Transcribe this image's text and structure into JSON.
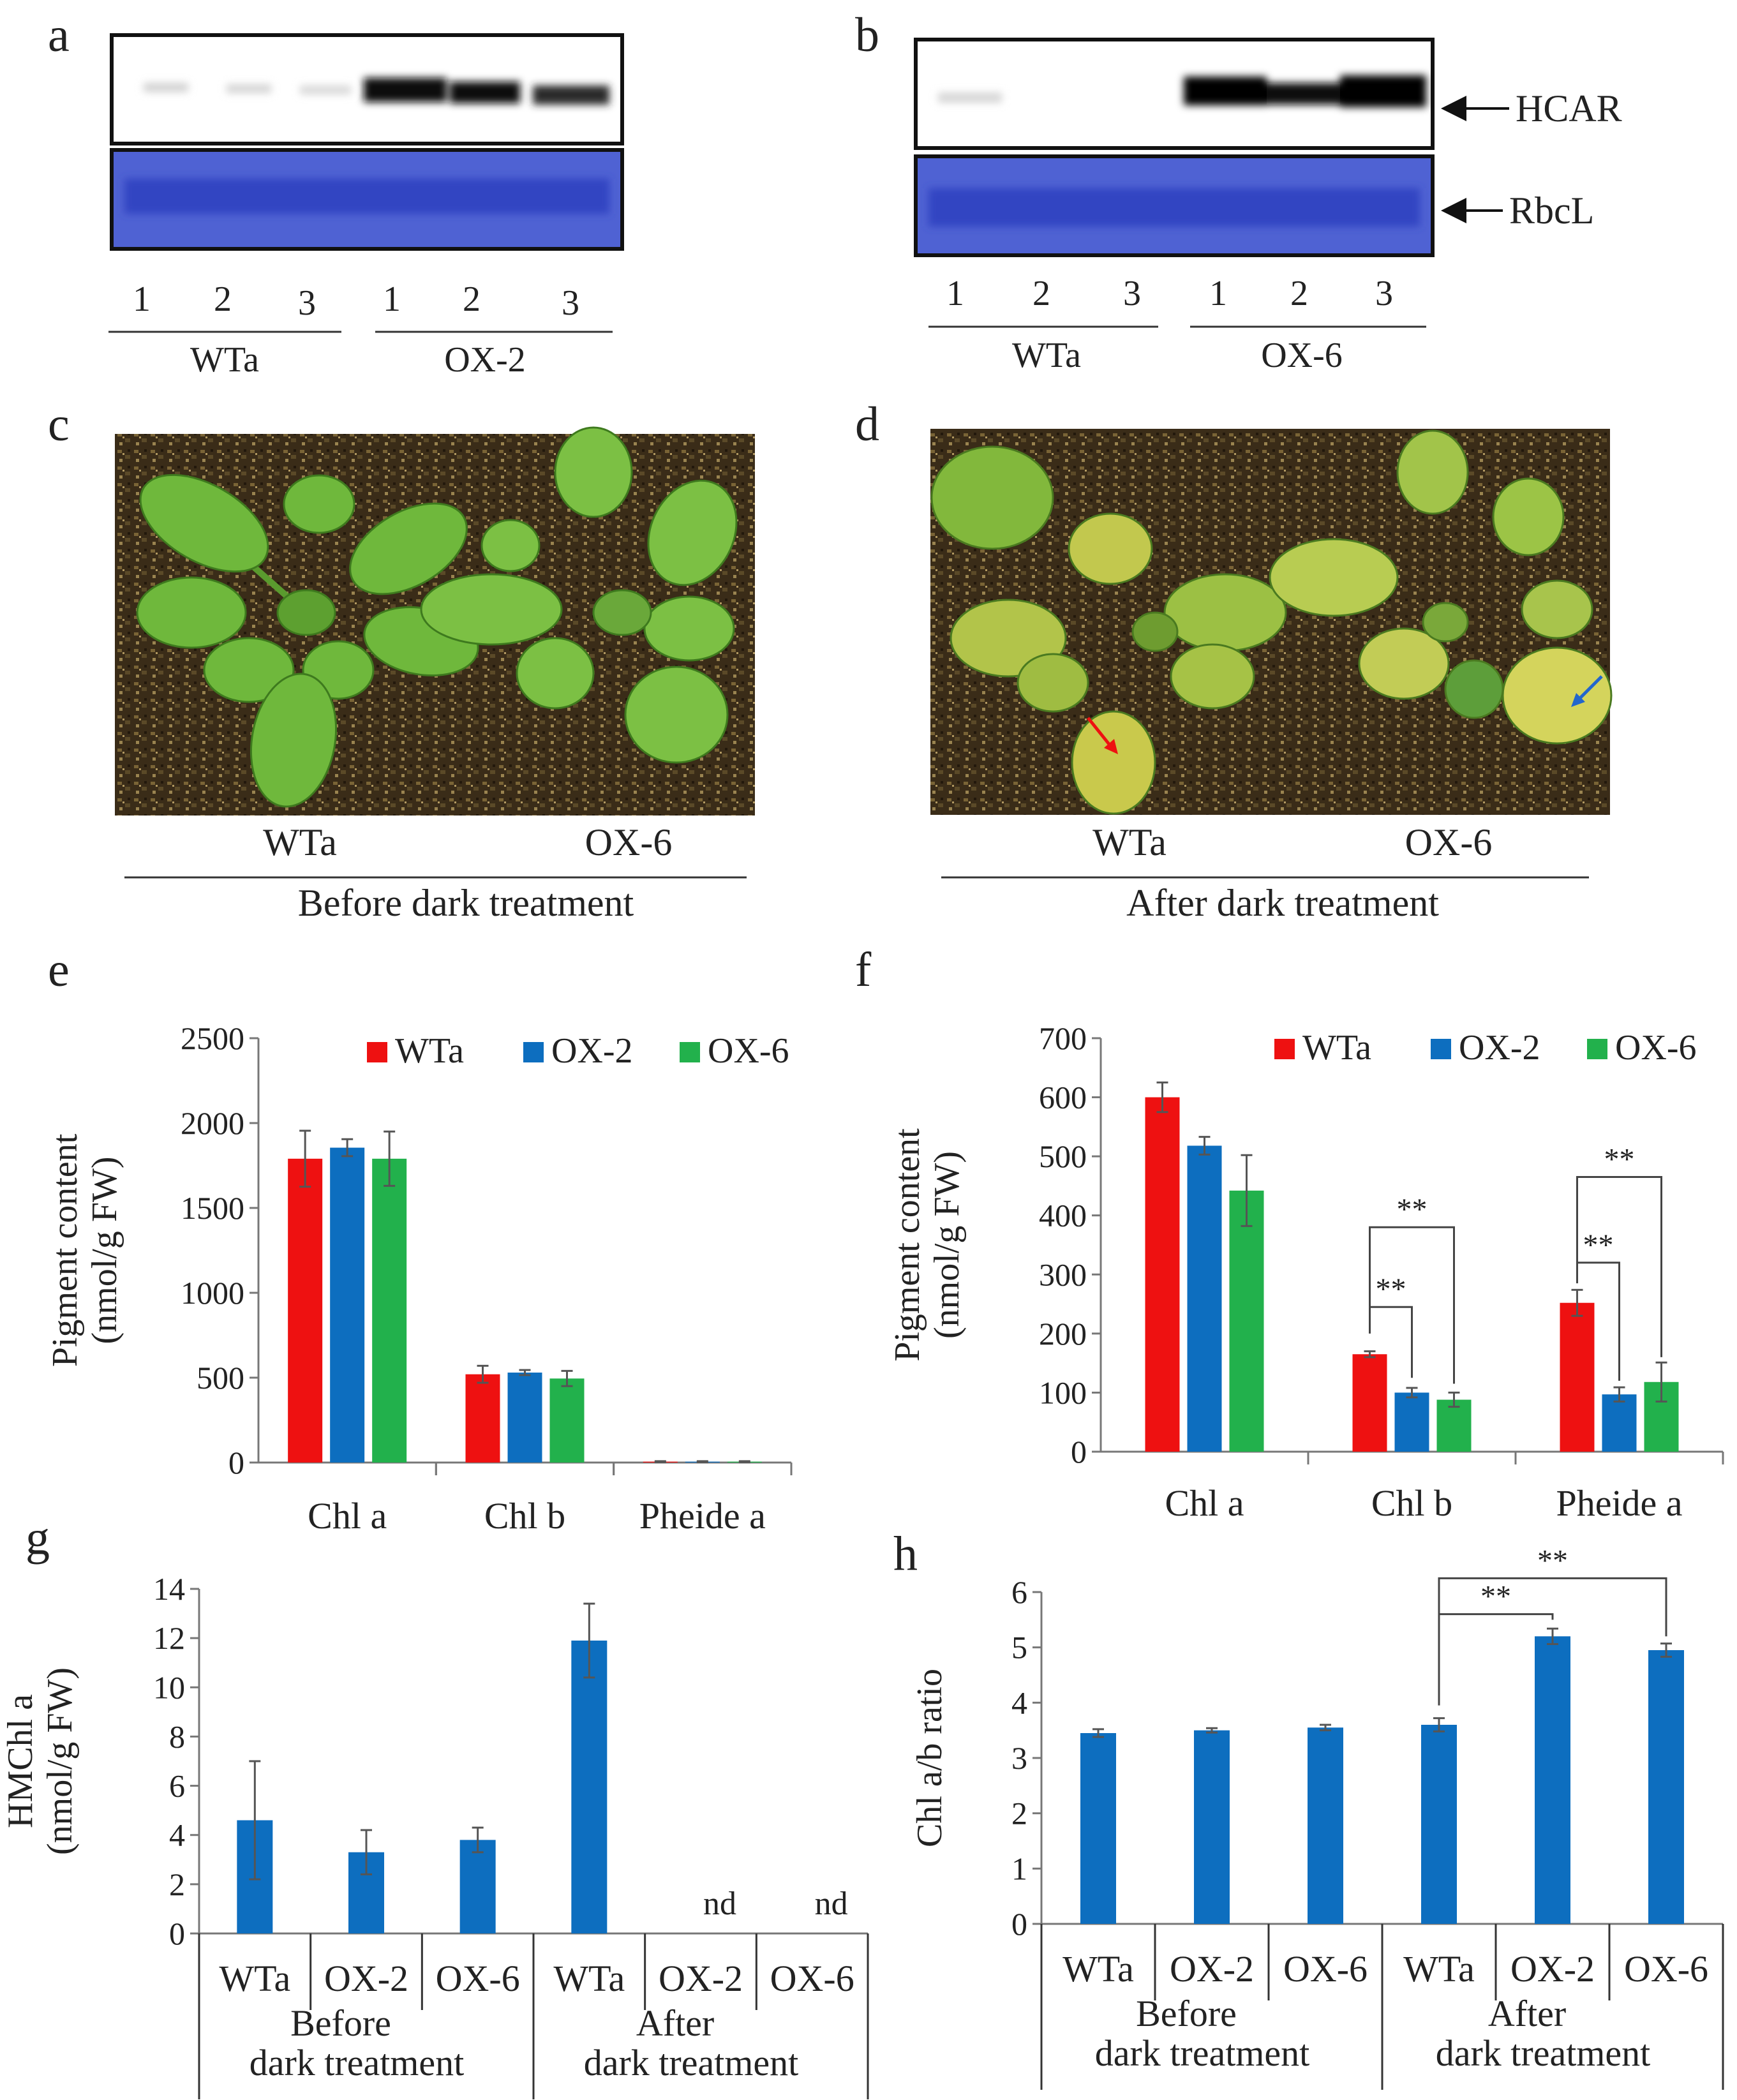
{
  "panels": {
    "a": {
      "letter": "a",
      "lanes": [
        "1",
        "2",
        "3",
        "1",
        "2",
        "3"
      ],
      "groups": [
        "WTa",
        "OX-2"
      ]
    },
    "b": {
      "letter": "b",
      "lanes": [
        "1",
        "2",
        "3",
        "1",
        "2",
        "3"
      ],
      "groups": [
        "WTa",
        "OX-6"
      ],
      "band_labels": [
        "HCAR",
        "RbcL"
      ]
    },
    "c": {
      "letter": "c",
      "plants": [
        "WTa",
        "OX-6"
      ],
      "caption": "Before dark treatment"
    },
    "d": {
      "letter": "d",
      "plants": [
        "WTa",
        "OX-6"
      ],
      "caption": "After dark treatment"
    },
    "e": {
      "letter": "e"
    },
    "f": {
      "letter": "f"
    },
    "g": {
      "letter": "g"
    },
    "h": {
      "letter": "h"
    }
  },
  "colors": {
    "WTa": "#ee1111",
    "OX-2": "#0d6ebf",
    "OX-6": "#22b14c",
    "single": "#0d6ebf",
    "coomassie": "#4d5fd0",
    "soil": "#3d2f1a",
    "leaf": "#6cb43a",
    "leaf_yellow": "#c8cc4a"
  },
  "chart_data": [
    {
      "panel": "e",
      "type": "bar",
      "categories": [
        "Chl a",
        "Chl b",
        "Pheide a"
      ],
      "series": [
        {
          "name": "WTa",
          "values": [
            1790,
            520,
            5
          ],
          "errors": [
            165,
            50,
            3
          ]
        },
        {
          "name": "OX-2",
          "values": [
            1855,
            530,
            5
          ],
          "errors": [
            50,
            15,
            3
          ]
        },
        {
          "name": "OX-6",
          "values": [
            1790,
            495,
            5
          ],
          "errors": [
            160,
            45,
            3
          ]
        }
      ],
      "ylabel": [
        "Pigment content",
        "(nmol/g FW)"
      ],
      "ylim": [
        0,
        2500
      ],
      "yticks": [
        "0",
        "500",
        "1000",
        "1500",
        "2000",
        "2500"
      ],
      "legend": [
        "WTa",
        "OX-2",
        "OX-6"
      ]
    },
    {
      "panel": "f",
      "type": "bar",
      "categories": [
        "Chl a",
        "Chl b",
        "Pheide a"
      ],
      "series": [
        {
          "name": "WTa",
          "values": [
            600,
            165,
            252
          ],
          "errors": [
            25,
            5,
            22
          ]
        },
        {
          "name": "OX-2",
          "values": [
            518,
            100,
            97
          ],
          "errors": [
            15,
            8,
            12
          ]
        },
        {
          "name": "OX-6",
          "values": [
            442,
            88,
            118
          ],
          "errors": [
            60,
            12,
            33
          ]
        }
      ],
      "ylabel": [
        "Pigment content",
        "(nmol/g FW)"
      ],
      "ylim": [
        0,
        700
      ],
      "yticks": [
        "0",
        "100",
        "200",
        "300",
        "400",
        "500",
        "600",
        "700"
      ],
      "legend": [
        "WTa",
        "OX-2",
        "OX-6"
      ],
      "significance": [
        {
          "category": "Chl b",
          "compare": "WTa vs OX-2",
          "label": "**"
        },
        {
          "category": "Chl b",
          "compare": "WTa vs OX-6",
          "label": "**"
        },
        {
          "category": "Pheide a",
          "compare": "WTa vs OX-2",
          "label": "**"
        },
        {
          "category": "Pheide a",
          "compare": "WTa vs OX-6",
          "label": "**"
        }
      ]
    },
    {
      "panel": "g",
      "type": "bar",
      "categories": [
        "WTa",
        "OX-2",
        "OX-6",
        "WTa",
        "OX-2",
        "OX-6"
      ],
      "groups": [
        [
          "Before",
          "dark treatment"
        ],
        [
          "After",
          "dark treatment"
        ]
      ],
      "values": [
        4.6,
        3.3,
        3.8,
        11.9,
        0,
        0
      ],
      "errors": [
        2.4,
        0.9,
        0.5,
        1.5,
        0,
        0
      ],
      "labels": [
        "",
        "",
        "",
        "",
        "nd",
        "nd"
      ],
      "ylabel": [
        "HMChl a",
        "(nmol/g FW)"
      ],
      "ylim": [
        0,
        14
      ],
      "yticks": [
        "0",
        "2",
        "4",
        "6",
        "8",
        "10",
        "12",
        "14"
      ]
    },
    {
      "panel": "h",
      "type": "bar",
      "categories": [
        "WTa",
        "OX-2",
        "OX-6",
        "WTa",
        "OX-2",
        "OX-6"
      ],
      "groups": [
        [
          "Before",
          "dark treatment"
        ],
        [
          "After",
          "dark treatment"
        ]
      ],
      "values": [
        3.45,
        3.5,
        3.55,
        3.6,
        5.2,
        4.95
      ],
      "errors": [
        0.07,
        0.04,
        0.05,
        0.12,
        0.14,
        0.12
      ],
      "ylabel": [
        "Chl a/b ratio"
      ],
      "ylim": [
        0,
        6
      ],
      "yticks": [
        "0",
        "1",
        "2",
        "3",
        "4",
        "5",
        "6"
      ],
      "significance": [
        {
          "compare": "After WTa vs After OX-2",
          "label": "**"
        },
        {
          "compare": "After WTa vs After OX-6",
          "label": "**"
        }
      ]
    }
  ]
}
